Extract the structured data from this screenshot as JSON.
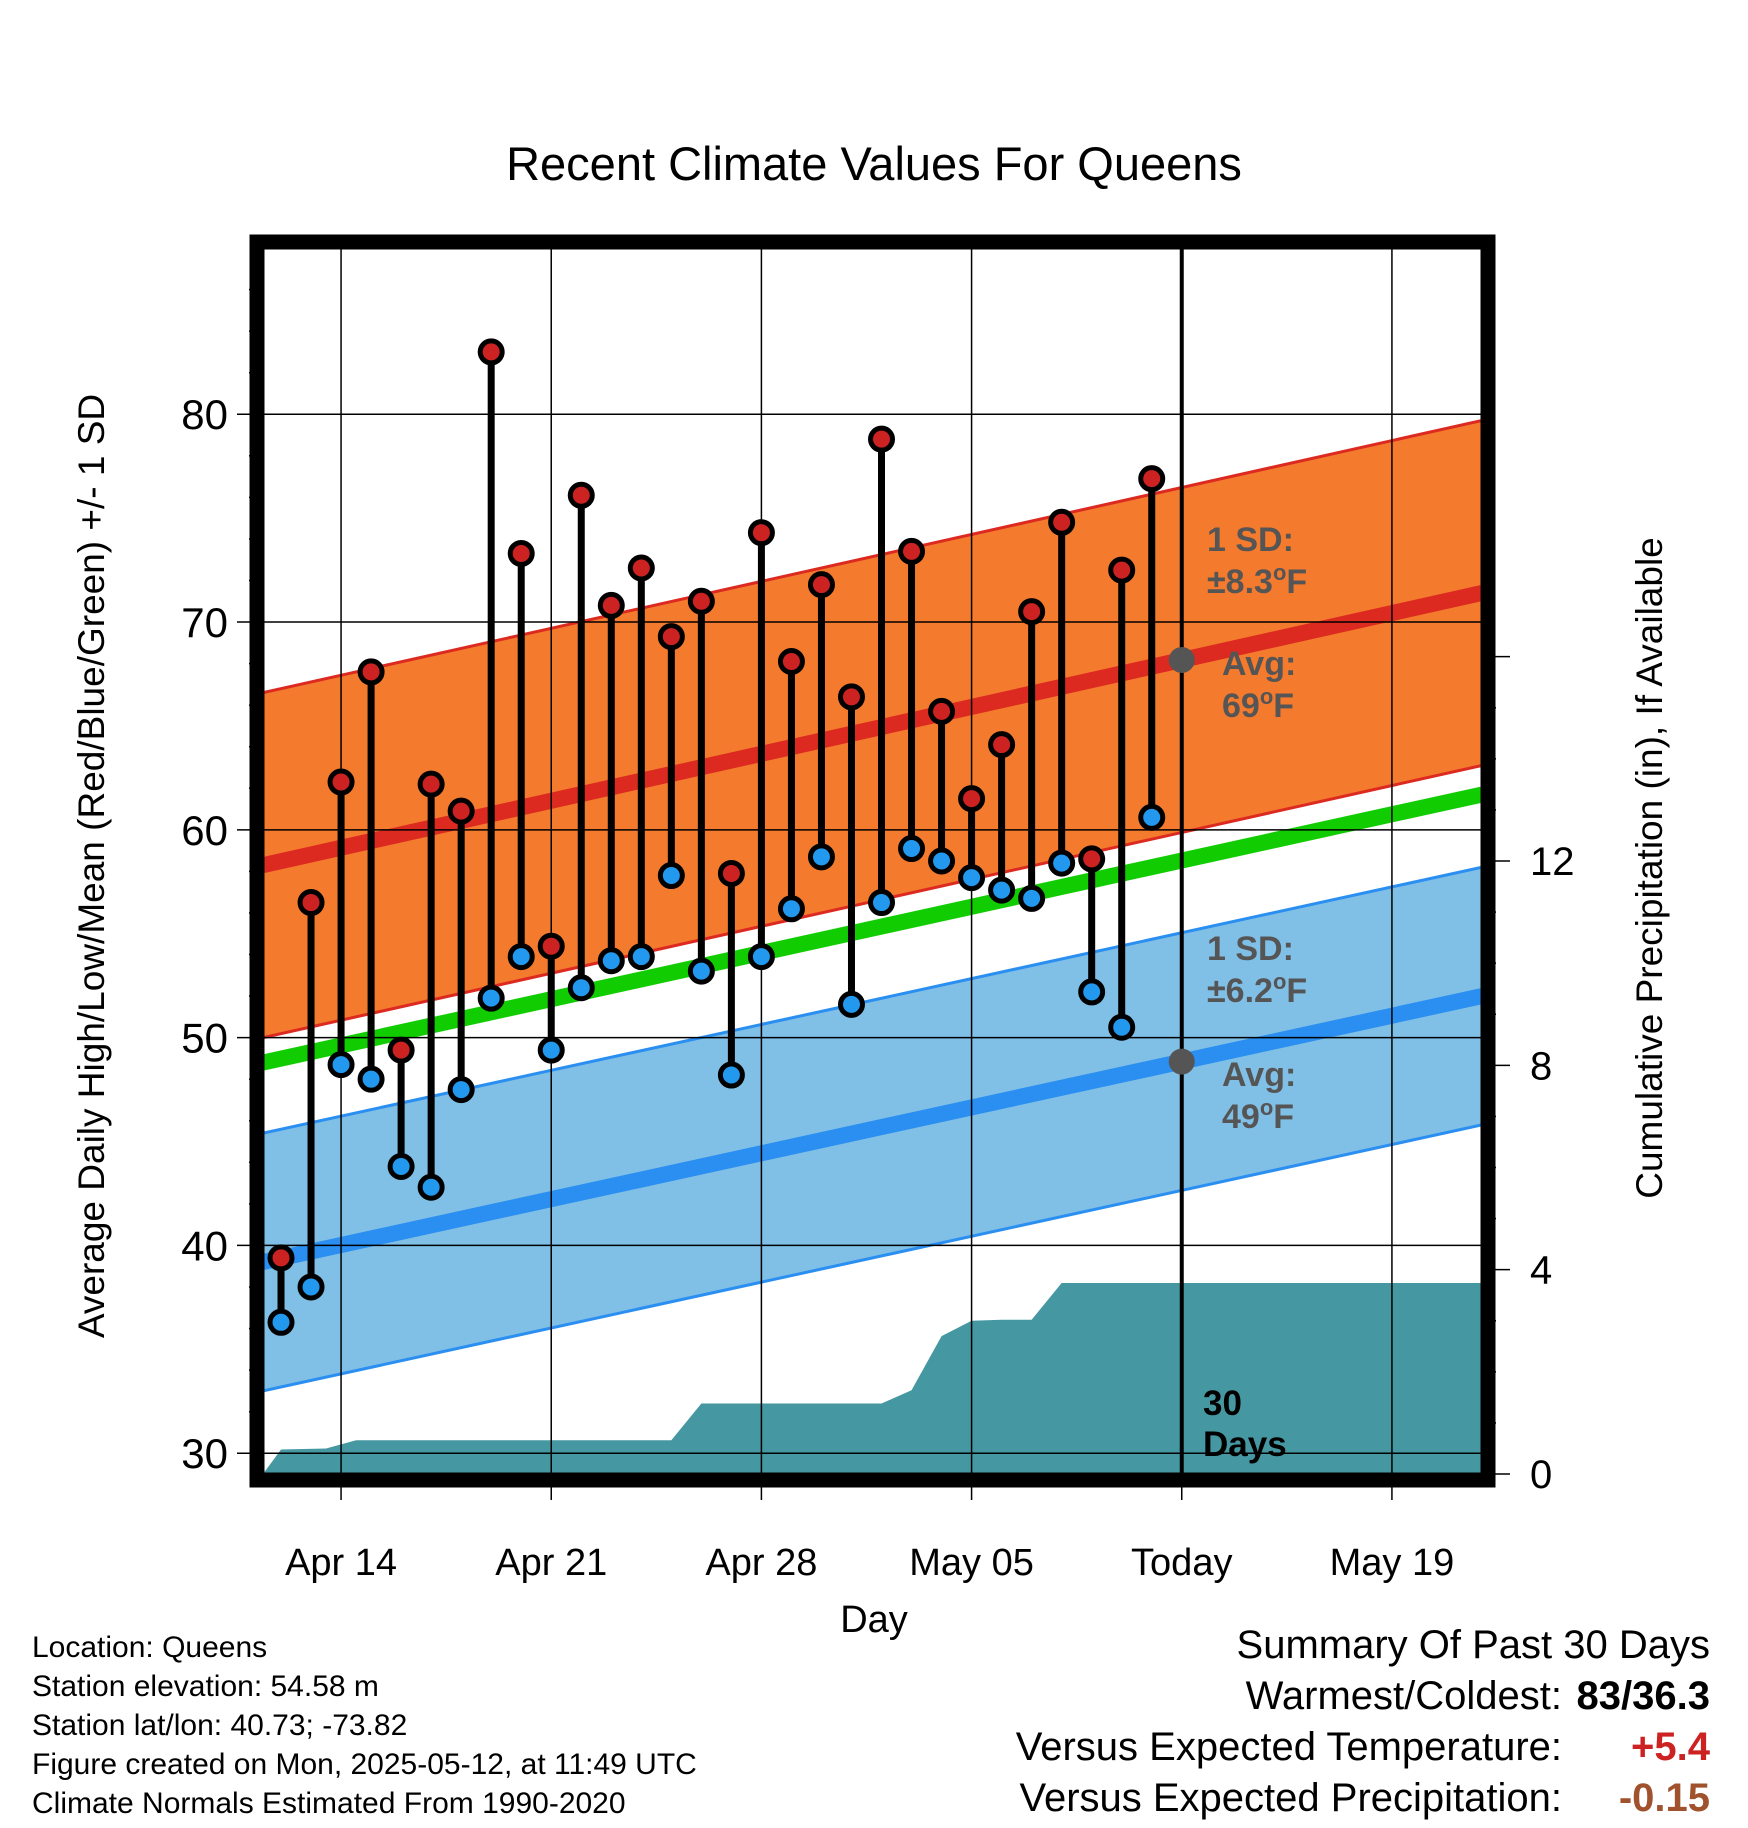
{
  "chart_data": {
    "type": "range",
    "title": "Recent Climate Values For Queens",
    "xlabel": "Day",
    "ylabel": "Average Daily High/Low/Mean (Red/Blue/Green) +/- 1 SD",
    "y2label": "Cumulative Precipitation (in), If Available",
    "ylim": [
      29,
      88
    ],
    "y2lim": [
      0,
      24
    ],
    "yticks": [
      30,
      40,
      50,
      60,
      70,
      80
    ],
    "y2ticks": [
      0,
      4,
      8,
      12
    ],
    "xlim": [
      -0.6,
      40.0
    ],
    "xticks": [
      {
        "day": 2,
        "label": "Apr 14"
      },
      {
        "day": 9,
        "label": "Apr 21"
      },
      {
        "day": 16,
        "label": "Apr 28"
      },
      {
        "day": 23,
        "label": "May 05"
      },
      {
        "day": 30,
        "label": "Today"
      },
      {
        "day": 37,
        "label": "May 19"
      }
    ],
    "grid": true,
    "today_day": 30,
    "highs": [
      39.4,
      56.5,
      62.3,
      67.6,
      49.4,
      62.2,
      60.9,
      83.0,
      73.3,
      54.4,
      76.1,
      70.8,
      72.6,
      69.3,
      71.0,
      57.9,
      74.3,
      68.1,
      71.8,
      66.4,
      78.8,
      73.4,
      65.7,
      61.5,
      64.1,
      70.5,
      74.8,
      58.6,
      72.5,
      76.9
    ],
    "lows": [
      36.3,
      38.0,
      48.7,
      48.0,
      43.8,
      42.8,
      47.5,
      51.9,
      53.9,
      49.4,
      52.4,
      53.7,
      53.9,
      57.8,
      53.2,
      48.2,
      53.9,
      56.2,
      58.7,
      51.6,
      56.5,
      59.1,
      58.5,
      57.7,
      57.1,
      56.7,
      58.4,
      52.2,
      50.5,
      60.6
    ],
    "normal_high": {
      "start": 58.3,
      "end": 71.4,
      "sd": 8.3
    },
    "normal_low": {
      "start": 39.2,
      "end": 52.0,
      "sd": 6.2
    },
    "normal_mean": {
      "start": 48.8,
      "end": 61.7
    },
    "cumulative_precip": [
      [
        -0.6,
        0.0
      ],
      [
        0.0,
        0.48
      ],
      [
        1.5,
        0.5
      ],
      [
        2.5,
        0.66
      ],
      [
        13.0,
        0.66
      ],
      [
        14.0,
        1.38
      ],
      [
        20.0,
        1.38
      ],
      [
        21.0,
        1.64
      ],
      [
        22.0,
        2.7
      ],
      [
        23.0,
        3.0
      ],
      [
        24.0,
        3.02
      ],
      [
        25.0,
        3.02
      ],
      [
        26.0,
        3.74
      ],
      [
        40.0,
        3.74
      ]
    ],
    "colors": {
      "high_band": "#f47a2e",
      "high_edge": "#dc2a20",
      "low_band": "#80bfe6",
      "low_edge": "#2a8ff0",
      "mean": "#11cc00",
      "precip": "#4597a1",
      "high_marker": "#cc2222",
      "low_marker": "#2299ee",
      "normal_dot": "#555555",
      "sd_text": "#555555"
    },
    "annotations": {
      "high_sd_line1": "1 SD:",
      "high_sd_line2": "±8.3",
      "high_avg_line1": "Avg:",
      "high_avg_line2": "69",
      "low_sd_line1": "1 SD:",
      "low_sd_line2": "±6.2",
      "low_avg_line1": "Avg:",
      "low_avg_line2": "49",
      "degree_mark": "o",
      "unit": "F",
      "days_line1": "30",
      "days_line2": "Days"
    }
  },
  "info": {
    "location": "Location: Queens",
    "elevation": "Station elevation: 54.58 m",
    "latlon": "Station lat/lon: 40.73; -73.82",
    "created": "Figure created on Mon, 2025-05-12, at 11:49 UTC",
    "normals": "Climate Normals Estimated From 1990-2020"
  },
  "summary": {
    "title": "Summary Of Past 30 Days",
    "warm_cold_label": "Warmest/Coldest:",
    "warm_cold_value": "83/36.3",
    "temp_label": "Versus Expected Temperature:",
    "temp_value": "+5.4",
    "temp_color": "#cc2222",
    "precip_label": "Versus Expected Precipitation:",
    "precip_value": "-0.15",
    "precip_color": "#a0522d"
  }
}
